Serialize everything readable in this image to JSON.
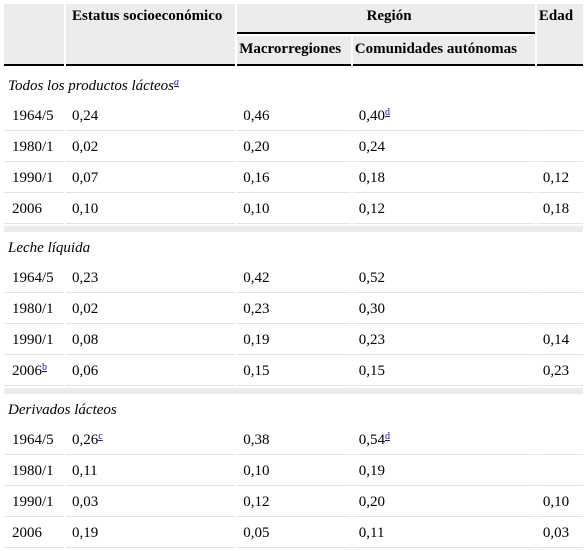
{
  "header": {
    "socio": "Estatus socioeconómico",
    "region": "Región",
    "edad": "Edad",
    "macro": "Macrorregiones",
    "ccaa": "Comunidades autónomas"
  },
  "sections": [
    {
      "title": "Todos los productos lácteos",
      "title_sup": "a",
      "rows": [
        {
          "year": "1964/5",
          "year_sup": "",
          "socio": "0,24",
          "socio_sup": "",
          "macro": "0,46",
          "ccaa": "0,40",
          "ccaa_sup": "d",
          "edad": ""
        },
        {
          "year": "1980/1",
          "year_sup": "",
          "socio": "0,02",
          "socio_sup": "",
          "macro": "0,20",
          "ccaa": "0,24",
          "ccaa_sup": "",
          "edad": ""
        },
        {
          "year": "1990/1",
          "year_sup": "",
          "socio": "0,07",
          "socio_sup": "",
          "macro": "0,16",
          "ccaa": "0,18",
          "ccaa_sup": "",
          "edad": "0,12"
        },
        {
          "year": "2006",
          "year_sup": "",
          "socio": "0,10",
          "socio_sup": "",
          "macro": "0,10",
          "ccaa": "0,12",
          "ccaa_sup": "",
          "edad": "0,18"
        }
      ]
    },
    {
      "title": "Leche líquida",
      "title_sup": "",
      "rows": [
        {
          "year": "1964/5",
          "year_sup": "",
          "socio": "0,23",
          "socio_sup": "",
          "macro": "0,42",
          "ccaa": "0,52",
          "ccaa_sup": "",
          "edad": ""
        },
        {
          "year": "1980/1",
          "year_sup": "",
          "socio": "0,02",
          "socio_sup": "",
          "macro": "0,23",
          "ccaa": "0,30",
          "ccaa_sup": "",
          "edad": ""
        },
        {
          "year": "1990/1",
          "year_sup": "",
          "socio": "0,08",
          "socio_sup": "",
          "macro": "0,19",
          "ccaa": "0,23",
          "ccaa_sup": "",
          "edad": "0,14"
        },
        {
          "year": "2006",
          "year_sup": "b",
          "socio": "0,06",
          "socio_sup": "",
          "macro": "0,15",
          "ccaa": "0,15",
          "ccaa_sup": "",
          "edad": "0,23"
        }
      ]
    },
    {
      "title": "Derivados lácteos",
      "title_sup": "",
      "rows": [
        {
          "year": "1964/5",
          "year_sup": "",
          "socio": "0,26",
          "socio_sup": "c",
          "macro": "0,38",
          "ccaa": "0,54",
          "ccaa_sup": "d",
          "edad": ""
        },
        {
          "year": "1980/1",
          "year_sup": "",
          "socio": "0,11",
          "socio_sup": "",
          "macro": "0,10",
          "ccaa": "0,19",
          "ccaa_sup": "",
          "edad": ""
        },
        {
          "year": "1990/1",
          "year_sup": "",
          "socio": "0,03",
          "socio_sup": "",
          "macro": "0,12",
          "ccaa": "0,20",
          "ccaa_sup": "",
          "edad": "0,10"
        },
        {
          "year": "2006",
          "year_sup": "",
          "socio": "0,19",
          "socio_sup": "",
          "macro": "0,05",
          "ccaa": "0,11",
          "ccaa_sup": "",
          "edad": "0,03"
        }
      ]
    }
  ]
}
